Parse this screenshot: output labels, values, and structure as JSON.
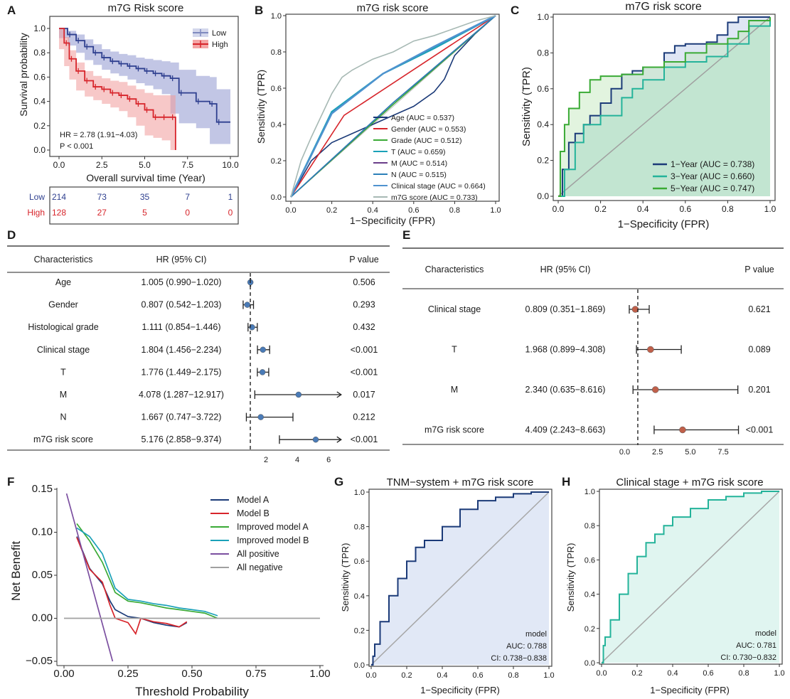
{
  "panels": {
    "A": "A",
    "B": "B",
    "C": "C",
    "D": "D",
    "E": "E",
    "F": "F",
    "G": "G",
    "H": "H"
  },
  "colors": {
    "low": "#2e3f8f",
    "high": "#d7252b",
    "navy": "#1b3a78",
    "teal": "#24b39a",
    "green": "#3aaa35",
    "gray": "#9a9a9a",
    "red": "#c62828",
    "blue_point": "#4a7bb7",
    "red_point": "#c0604a"
  },
  "panelA": {
    "chart_data": {
      "type": "line",
      "title": "m7G Risk score",
      "xlabel": "Overall survival time (Year)",
      "ylabel": "Survival probability",
      "xlim": [
        0,
        10
      ],
      "ylim": [
        0,
        1
      ],
      "x_ticks": [
        "0.0",
        "2.5",
        "5.0",
        "7.5",
        "10.0"
      ],
      "y_ticks": [
        "0.0",
        "0.2",
        "0.4",
        "0.6",
        "0.8",
        "1.0"
      ],
      "legend": [
        "Low",
        "High"
      ],
      "series": [
        {
          "name": "Low",
          "x": [
            0,
            0.5,
            1,
            1.5,
            2,
            2.5,
            3,
            3.5,
            4,
            4.5,
            5,
            5.5,
            6,
            6.5,
            7,
            8,
            8.8,
            9.2,
            10
          ],
          "y": [
            1,
            0.95,
            0.9,
            0.85,
            0.8,
            0.76,
            0.73,
            0.71,
            0.69,
            0.67,
            0.65,
            0.63,
            0.61,
            0.59,
            0.47,
            0.4,
            0.38,
            0.23,
            0.23
          ],
          "ci_low": [
            1,
            0.92,
            0.86,
            0.8,
            0.74,
            0.7,
            0.66,
            0.63,
            0.61,
            0.58,
            0.55,
            0.53,
            0.5,
            0.46,
            0.3,
            0.22,
            0.18,
            0.05,
            0.05
          ],
          "ci_high": [
            1,
            0.98,
            0.95,
            0.91,
            0.87,
            0.83,
            0.81,
            0.79,
            0.78,
            0.76,
            0.75,
            0.74,
            0.73,
            0.72,
            0.66,
            0.61,
            0.6,
            0.5,
            0.5
          ]
        },
        {
          "name": "High",
          "x": [
            0,
            0.3,
            0.6,
            1,
            1.5,
            2,
            2.5,
            3,
            3.5,
            4,
            4.5,
            5,
            5.5,
            6,
            6.5,
            6.8
          ],
          "y": [
            1,
            0.88,
            0.75,
            0.65,
            0.57,
            0.52,
            0.5,
            0.47,
            0.45,
            0.42,
            0.38,
            0.33,
            0.27,
            0.27,
            0.27,
            0
          ],
          "ci_low": [
            1,
            0.83,
            0.69,
            0.58,
            0.49,
            0.44,
            0.41,
            0.38,
            0.35,
            0.32,
            0.27,
            0.2,
            0.12,
            0.1,
            0.08,
            0
          ],
          "ci_high": [
            1,
            0.93,
            0.82,
            0.72,
            0.65,
            0.61,
            0.59,
            0.57,
            0.56,
            0.53,
            0.5,
            0.47,
            0.45,
            0.45,
            0.45,
            0
          ]
        }
      ],
      "annotations": [
        "HR = 2.78 (1.91−4.03)",
        "P < 0.001"
      ]
    },
    "risk_table": {
      "rows": [
        {
          "label": "Low",
          "values": [
            "214",
            "73",
            "35",
            "7",
            "1"
          ]
        },
        {
          "label": "High",
          "values": [
            "128",
            "27",
            "5",
            "0",
            "0"
          ]
        }
      ]
    }
  },
  "panelB": {
    "chart_data": {
      "type": "line",
      "title": "m7G risk score",
      "xlabel": "1−Specificity (FPR)",
      "ylabel": "Sensitivity (TPR)",
      "xlim": [
        0,
        1
      ],
      "ylim": [
        0,
        1
      ],
      "x_ticks": [
        "0.0",
        "0.2",
        "0.4",
        "0.6",
        "0.8",
        "1.0"
      ],
      "y_ticks": [
        "0.0",
        "0.2",
        "0.4",
        "0.6",
        "0.8",
        "1.0"
      ],
      "series": [
        {
          "name": "Age (AUC = 0.537)",
          "color": "#1b3a78",
          "x": [
            0,
            0.05,
            0.1,
            0.2,
            0.3,
            0.4,
            0.5,
            0.6,
            0.7,
            0.75,
            0.8,
            0.9,
            1
          ],
          "y": [
            0,
            0.1,
            0.2,
            0.3,
            0.35,
            0.4,
            0.45,
            0.5,
            0.58,
            0.65,
            0.78,
            0.9,
            1
          ]
        },
        {
          "name": "Gender (AUC = 0.553)",
          "color": "#d7252b",
          "x": [
            0,
            0.26,
            1
          ],
          "y": [
            0,
            0.45,
            1
          ]
        },
        {
          "name": "Grade (AUC = 0.512)",
          "color": "#3aaa35",
          "x": [
            0,
            0.5,
            1
          ],
          "y": [
            0,
            0.51,
            1
          ]
        },
        {
          "name": "T (AUC = 0.659)",
          "color": "#1aa1b8",
          "x": [
            0,
            0.2,
            0.45,
            0.7,
            1
          ],
          "y": [
            0,
            0.47,
            0.68,
            0.82,
            1
          ]
        },
        {
          "name": "M (AUC = 0.514)",
          "color": "#6a3d8a",
          "x": [
            0,
            0.5,
            1
          ],
          "y": [
            0,
            0.52,
            1
          ]
        },
        {
          "name": "N (AUC = 0.515)",
          "color": "#2c7fb8",
          "x": [
            0,
            0.5,
            1
          ],
          "y": [
            0,
            0.52,
            1
          ]
        },
        {
          "name": "Clinical stage (AUC = 0.664)",
          "color": "#4f92cf",
          "x": [
            0,
            0.2,
            0.45,
            0.7,
            1
          ],
          "y": [
            0,
            0.46,
            0.68,
            0.83,
            1
          ]
        },
        {
          "name": "m7G score (AUC = 0.733)",
          "color": "#a7b9b4",
          "x": [
            0,
            0.05,
            0.1,
            0.15,
            0.2,
            0.25,
            0.3,
            0.4,
            0.5,
            0.6,
            0.7,
            0.8,
            0.9,
            1
          ],
          "y": [
            0,
            0.2,
            0.33,
            0.45,
            0.57,
            0.66,
            0.7,
            0.76,
            0.8,
            0.86,
            0.89,
            0.93,
            0.97,
            1
          ]
        }
      ]
    }
  },
  "panelC": {
    "chart_data": {
      "type": "area",
      "title": "m7G risk score",
      "xlabel": "1−Specificity (FPR)",
      "ylabel": "Sensitivity (TPR)",
      "xlim": [
        0,
        1
      ],
      "ylim": [
        0,
        1
      ],
      "x_ticks": [
        "0.0",
        "0.2",
        "0.4",
        "0.6",
        "0.8",
        "1.0"
      ],
      "y_ticks": [
        "0.0",
        "0.2",
        "0.4",
        "0.6",
        "0.8",
        "1.0"
      ],
      "series": [
        {
          "name": "1−Year (AUC = 0.738)",
          "color": "#1b3a78",
          "x": [
            0,
            0.02,
            0.05,
            0.08,
            0.12,
            0.15,
            0.2,
            0.25,
            0.3,
            0.35,
            0.4,
            0.5,
            0.55,
            0.6,
            0.7,
            0.75,
            0.8,
            0.85,
            0.9,
            1
          ],
          "y": [
            0,
            0.15,
            0.3,
            0.35,
            0.4,
            0.45,
            0.52,
            0.6,
            0.68,
            0.7,
            0.72,
            0.8,
            0.84,
            0.85,
            0.86,
            0.9,
            0.97,
            1,
            1,
            1
          ]
        },
        {
          "name": "3−Year (AUC = 0.660)",
          "color": "#24b39a",
          "x": [
            0,
            0.03,
            0.08,
            0.12,
            0.2,
            0.3,
            0.35,
            0.4,
            0.5,
            0.6,
            0.7,
            0.8,
            0.9,
            1
          ],
          "y": [
            0,
            0.15,
            0.3,
            0.4,
            0.45,
            0.55,
            0.6,
            0.65,
            0.72,
            0.75,
            0.78,
            0.85,
            0.95,
            1
          ]
        },
        {
          "name": "5−Year (AUC = 0.747)",
          "color": "#3aaa35",
          "x": [
            0,
            0.01,
            0.03,
            0.05,
            0.1,
            0.15,
            0.2,
            0.3,
            0.4,
            0.5,
            0.6,
            0.7,
            0.8,
            0.85,
            0.9,
            1
          ],
          "y": [
            0,
            0.25,
            0.4,
            0.49,
            0.58,
            0.65,
            0.67,
            0.68,
            0.72,
            0.75,
            0.8,
            0.85,
            0.88,
            0.92,
            0.98,
            1
          ]
        }
      ]
    }
  },
  "panelD": {
    "chart_data": {
      "type": "table",
      "headers": [
        "Characteristics",
        "HR (95% CI)",
        "P value"
      ],
      "x_ticks": [
        "2",
        "4",
        "6"
      ],
      "xlim": [
        0,
        6.9
      ],
      "ref_line": 1,
      "rows": [
        {
          "name": "Age",
          "hr_text": "1.005 (0.990−1.020)",
          "p": "0.506",
          "hr": 1.005,
          "lo": 0.99,
          "hi": 1.02,
          "arrow": false
        },
        {
          "name": "Gender",
          "hr_text": "0.807 (0.542−1.203)",
          "p": "0.293",
          "hr": 0.807,
          "lo": 0.542,
          "hi": 1.203,
          "arrow": false
        },
        {
          "name": "Histological grade",
          "hr_text": "1.111 (0.854−1.446)",
          "p": "0.432",
          "hr": 1.111,
          "lo": 0.854,
          "hi": 1.446,
          "arrow": false
        },
        {
          "name": "Clinical stage",
          "hr_text": "1.804 (1.456−2.234)",
          "p": "<0.001",
          "hr": 1.804,
          "lo": 1.456,
          "hi": 2.234,
          "arrow": false
        },
        {
          "name": "T",
          "hr_text": "1.776 (1.449−2.175)",
          "p": "<0.001",
          "hr": 1.776,
          "lo": 1.449,
          "hi": 2.175,
          "arrow": false
        },
        {
          "name": "M",
          "hr_text": "4.078 (1.287−12.917)",
          "p": "0.017",
          "hr": 4.078,
          "lo": 1.287,
          "hi": 12.917,
          "arrow": true
        },
        {
          "name": "N",
          "hr_text": "1.667 (0.747−3.722)",
          "p": "0.212",
          "hr": 1.667,
          "lo": 0.747,
          "hi": 3.722,
          "arrow": false
        },
        {
          "name": "m7G risk score",
          "hr_text": "5.176 (2.858−9.374)",
          "p": "<0.001",
          "hr": 5.176,
          "lo": 2.858,
          "hi": 9.374,
          "arrow": true
        }
      ]
    }
  },
  "panelE": {
    "chart_data": {
      "type": "table",
      "headers": [
        "Characteristics",
        "HR (95% CI)",
        "P value"
      ],
      "x_ticks": [
        "0.0",
        "2.5",
        "5.0",
        "7.5"
      ],
      "xlim": [
        -1,
        9.5
      ],
      "ref_line": 1,
      "rows": [
        {
          "name": "Clinical stage",
          "hr_text": "0.809 (0.351−1.869)",
          "p": "0.621",
          "hr": 0.809,
          "lo": 0.351,
          "hi": 1.869
        },
        {
          "name": "T",
          "hr_text": "1.968 (0.899−4.308)",
          "p": "0.089",
          "hr": 1.968,
          "lo": 0.899,
          "hi": 4.308
        },
        {
          "name": "M",
          "hr_text": "2.340 (0.635−8.616)",
          "p": "0.201",
          "hr": 2.34,
          "lo": 0.635,
          "hi": 8.616
        },
        {
          "name": "m7G risk score",
          "hr_text": "4.409 (2.243−8.663)",
          "p": "<0.001",
          "hr": 4.409,
          "lo": 2.243,
          "hi": 8.663
        }
      ]
    }
  },
  "panelF": {
    "chart_data": {
      "type": "line",
      "xlabel": "Threshold Probability",
      "ylabel": "Net Benefit",
      "xlim": [
        0,
        1
      ],
      "ylim": [
        -0.05,
        0.15
      ],
      "x_ticks": [
        "0.00",
        "0.25",
        "0.50",
        "0.75",
        "1.00"
      ],
      "y_ticks": [
        "−0.05",
        "0.00",
        "0.05",
        "0.10",
        "0.15"
      ],
      "series": [
        {
          "name": "Model A",
          "color": "#1b3a78",
          "x": [
            0.05,
            0.1,
            0.15,
            0.18,
            0.2,
            0.25,
            0.3,
            0.35,
            0.4,
            0.45,
            0.48
          ],
          "y": [
            0.095,
            0.058,
            0.04,
            0.02,
            0.01,
            0.002,
            0.0,
            -0.005,
            -0.008,
            -0.01,
            -0.005
          ]
        },
        {
          "name": "Model B",
          "color": "#d7252b",
          "x": [
            0.05,
            0.1,
            0.15,
            0.18,
            0.2,
            0.25,
            0.28,
            0.3,
            0.35,
            0.4,
            0.45,
            0.48
          ],
          "y": [
            0.094,
            0.057,
            0.042,
            0.015,
            0.0,
            -0.005,
            -0.018,
            0.0,
            -0.004,
            -0.006,
            -0.01,
            -0.004
          ]
        },
        {
          "name": "Improved model A",
          "color": "#3aaa35",
          "x": [
            0.05,
            0.1,
            0.15,
            0.2,
            0.25,
            0.3,
            0.35,
            0.4,
            0.45,
            0.5,
            0.55,
            0.6
          ],
          "y": [
            0.11,
            0.09,
            0.065,
            0.03,
            0.02,
            0.018,
            0.015,
            0.012,
            0.01,
            0.008,
            0.006,
            0.0
          ]
        },
        {
          "name": "Improved model B",
          "color": "#1aa1b8",
          "x": [
            0.05,
            0.1,
            0.15,
            0.2,
            0.25,
            0.3,
            0.35,
            0.4,
            0.45,
            0.5,
            0.55,
            0.6
          ],
          "y": [
            0.105,
            0.095,
            0.075,
            0.035,
            0.022,
            0.02,
            0.017,
            0.015,
            0.012,
            0.01,
            0.008,
            0.003
          ]
        },
        {
          "name": "All positive",
          "color": "#7b4fa0",
          "x": [
            0.01,
            0.19
          ],
          "y": [
            0.145,
            -0.05
          ]
        },
        {
          "name": "All negative",
          "color": "#a0a0a0",
          "x": [
            0,
            1
          ],
          "y": [
            0,
            0
          ]
        }
      ]
    }
  },
  "panelG": {
    "chart_data": {
      "type": "area",
      "title": "TNM−system + m7G risk score",
      "xlabel": "1−Specificity (FPR)",
      "ylabel": "Sensitivity (TPR)",
      "xlim": [
        0,
        1
      ],
      "ylim": [
        0,
        1
      ],
      "x_ticks": [
        "0.0",
        "0.2",
        "0.4",
        "0.6",
        "0.8",
        "1.0"
      ],
      "y_ticks": [
        "0.0",
        "0.2",
        "0.4",
        "0.6",
        "0.8",
        "1.0"
      ],
      "series": [
        {
          "name": "model",
          "color": "#1b3a78",
          "x": [
            0,
            0.01,
            0.02,
            0.05,
            0.1,
            0.15,
            0.2,
            0.25,
            0.3,
            0.4,
            0.5,
            0.6,
            0.7,
            0.8,
            0.9,
            1
          ],
          "y": [
            0,
            0.05,
            0.12,
            0.25,
            0.4,
            0.5,
            0.6,
            0.68,
            0.72,
            0.8,
            0.9,
            0.95,
            0.97,
            0.99,
            1,
            1
          ]
        }
      ],
      "annotations": [
        "model",
        "AUC: 0.788",
        "CI: 0.738−0.838"
      ]
    }
  },
  "panelH": {
    "chart_data": {
      "type": "area",
      "title": "Clinical stage + m7G risk score",
      "xlabel": "1−Specificity (FPR)",
      "ylabel": "Sensitivity (TPR)",
      "xlim": [
        0,
        1
      ],
      "ylim": [
        0,
        1
      ],
      "x_ticks": [
        "0.0",
        "0.2",
        "0.4",
        "0.6",
        "0.8",
        "1.0"
      ],
      "y_ticks": [
        "0.0",
        "0.2",
        "0.4",
        "0.6",
        "0.8",
        "1.0"
      ],
      "series": [
        {
          "name": "model",
          "color": "#24b39a",
          "x": [
            0,
            0.01,
            0.02,
            0.05,
            0.1,
            0.15,
            0.2,
            0.25,
            0.3,
            0.35,
            0.4,
            0.5,
            0.6,
            0.7,
            0.8,
            0.9,
            1
          ],
          "y": [
            0,
            0.1,
            0.15,
            0.25,
            0.4,
            0.52,
            0.62,
            0.7,
            0.75,
            0.8,
            0.85,
            0.9,
            0.95,
            0.97,
            0.99,
            1,
            1
          ]
        }
      ],
      "annotations": [
        "model",
        "AUC: 0.781",
        "CI: 0.730−0.832"
      ]
    }
  }
}
